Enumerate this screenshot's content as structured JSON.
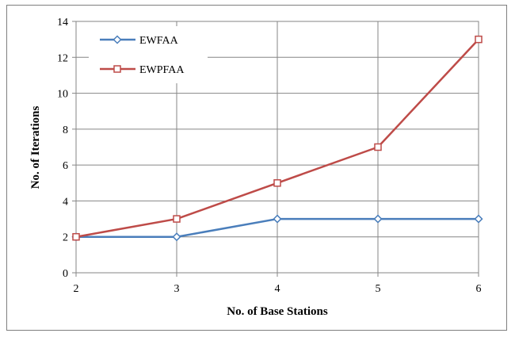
{
  "chart_data": {
    "type": "line",
    "x": [
      2,
      3,
      4,
      5,
      6
    ],
    "series": [
      {
        "name": "EWFAA",
        "values": [
          2,
          2,
          3,
          3,
          3
        ],
        "color": "#4a7ebb",
        "marker": "diamond"
      },
      {
        "name": "EWPFAA",
        "values": [
          2,
          3,
          5,
          7,
          13
        ],
        "color": "#be4b48",
        "marker": "square"
      }
    ],
    "xlabel": "No. of Base Stations",
    "ylabel": "No. of Iterations",
    "xlim": [
      2,
      6
    ],
    "ylim": [
      0,
      14
    ],
    "xticks": [
      "2",
      "3",
      "4",
      "5",
      "6"
    ],
    "yticks": [
      "0",
      "2",
      "4",
      "6",
      "8",
      "10",
      "12",
      "14"
    ],
    "grid": true,
    "legend_position": "top-left"
  }
}
